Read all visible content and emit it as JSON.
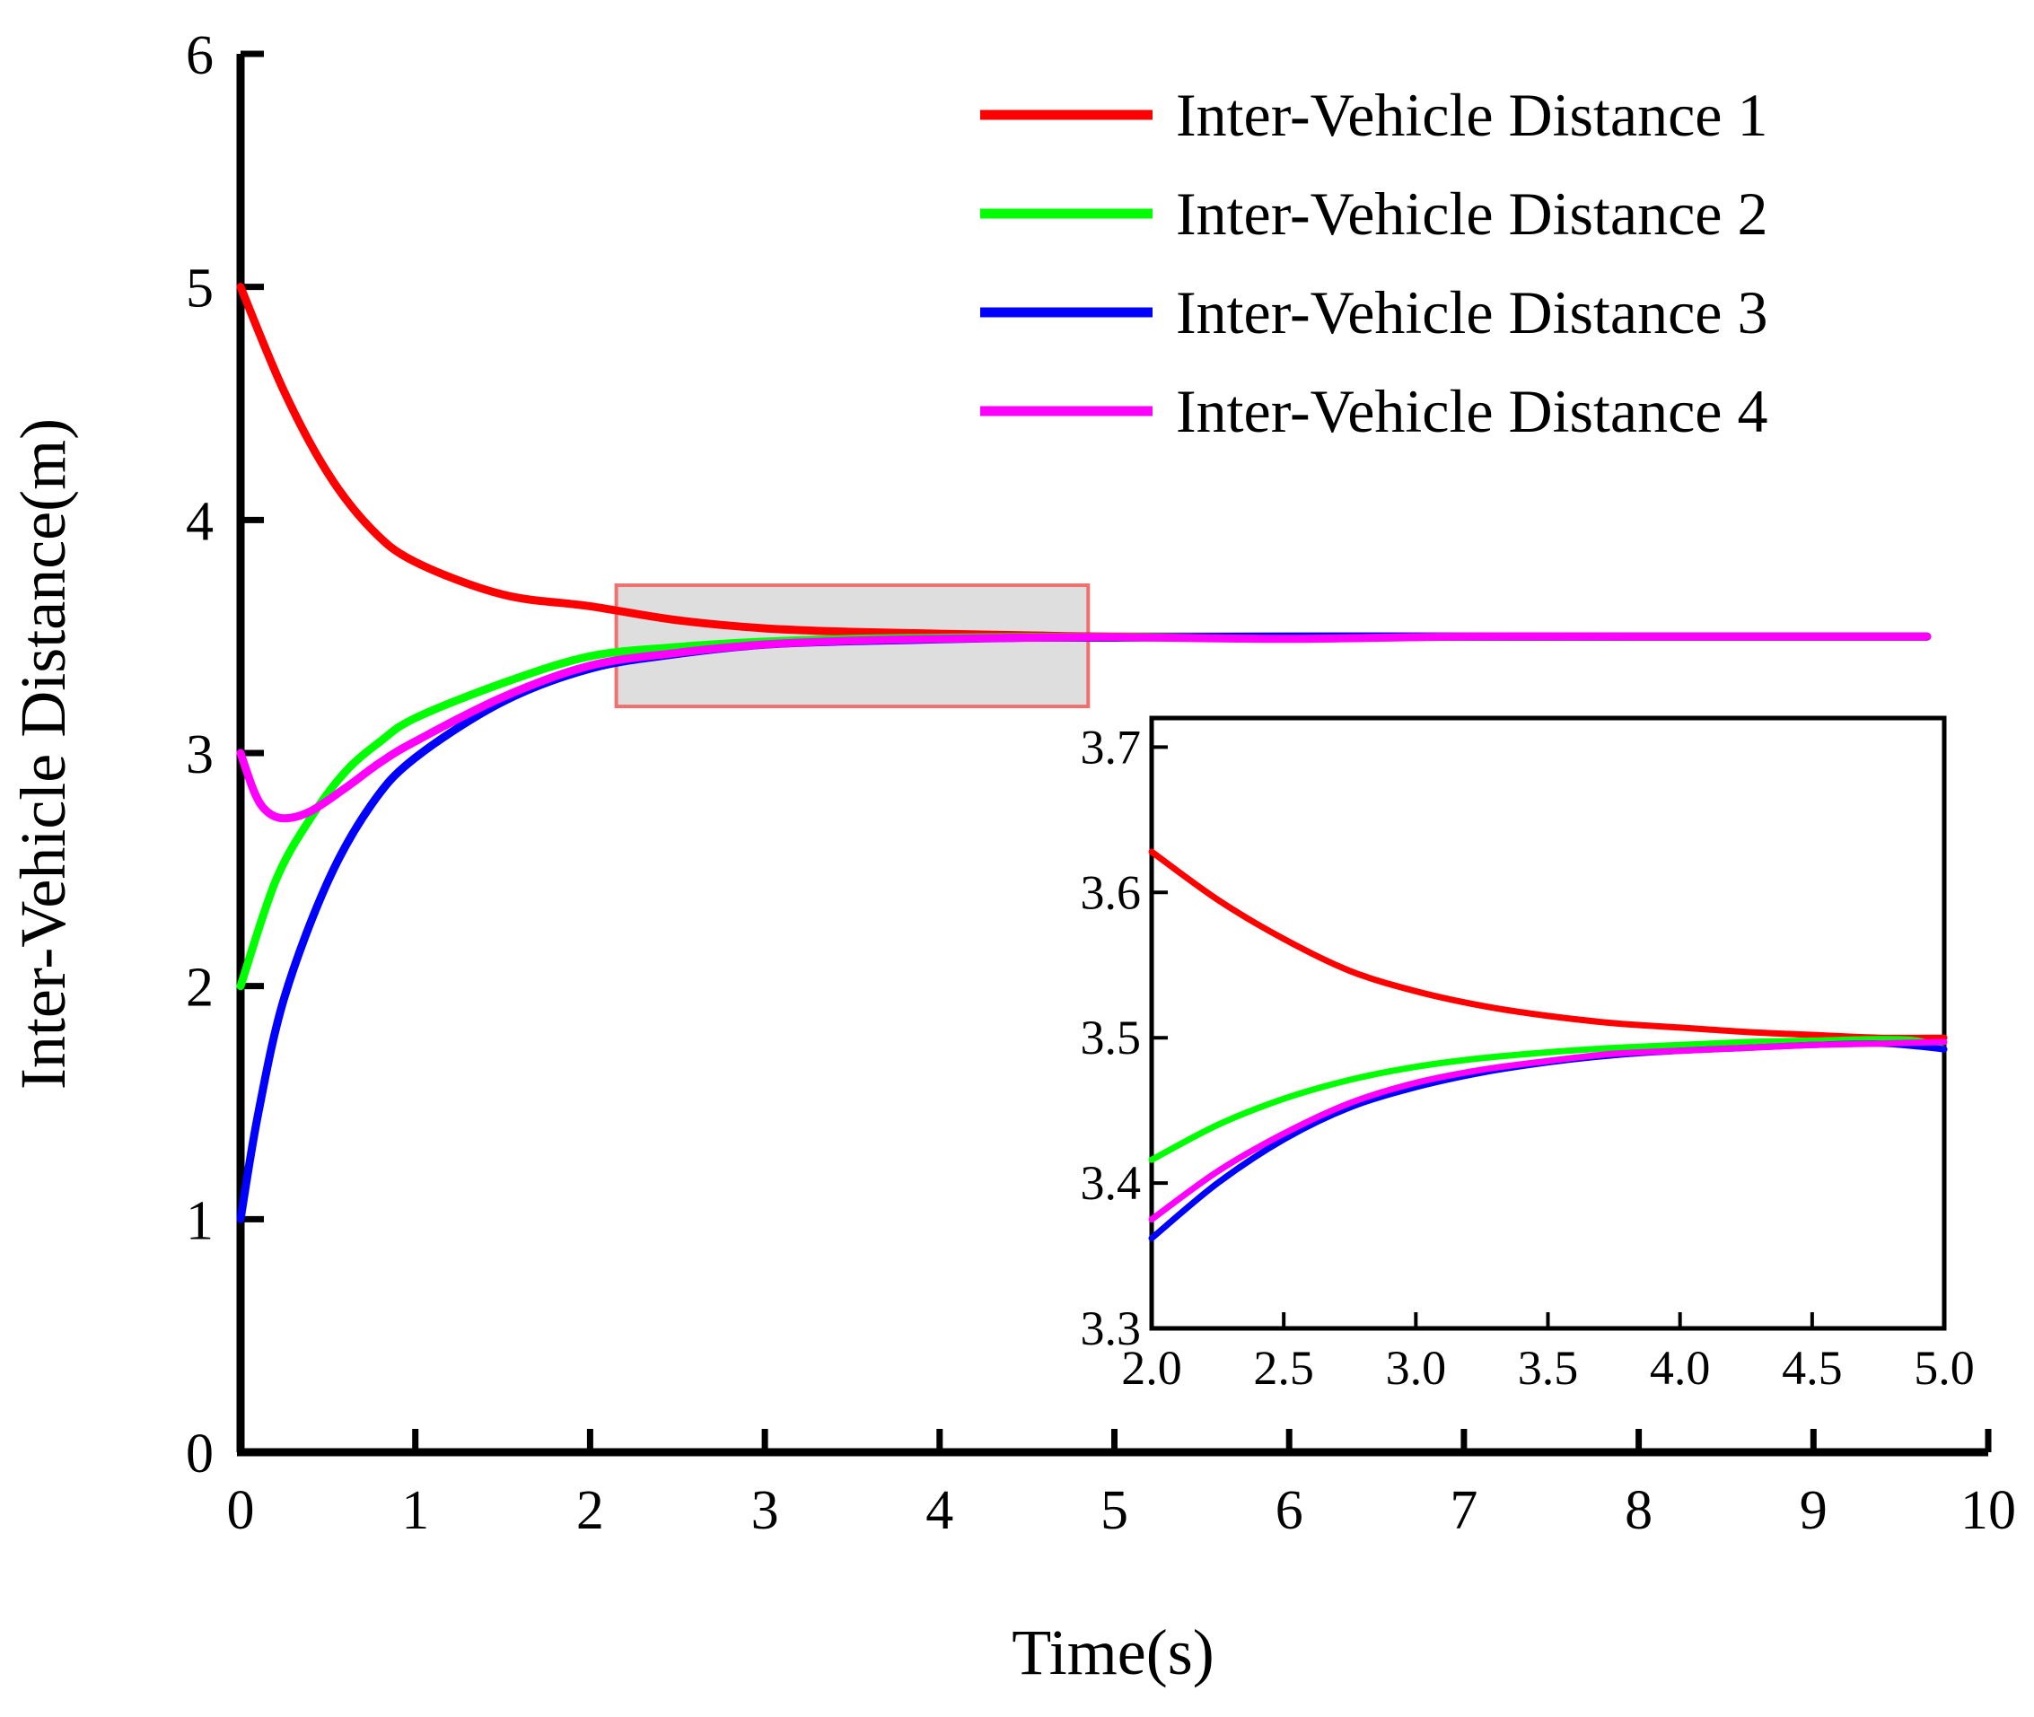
{
  "chart_data": {
    "type": "line",
    "xlabel": "Time(s)",
    "ylabel": "Inter-Vehicle Distance(m)",
    "xlim": [
      0,
      10
    ],
    "ylim": [
      0,
      6
    ],
    "xticks": [
      "0",
      "1",
      "2",
      "3",
      "4",
      "5",
      "6",
      "7",
      "8",
      "9",
      "10"
    ],
    "yticks": [
      "0",
      "1",
      "2",
      "3",
      "4",
      "5",
      "6"
    ],
    "grid": false,
    "legend_position": "top-right",
    "zoom_region": {
      "x": [
        2.15,
        4.85
      ],
      "y": [
        3.2,
        3.72
      ]
    },
    "series": [
      {
        "name": "Inter-Vehicle Distance 1",
        "color": "#ff0000",
        "x": [
          0.0,
          0.25,
          0.5,
          0.75,
          1.0,
          1.5,
          2.0,
          2.5,
          3.0,
          3.5,
          4.0,
          4.5,
          5.0,
          6.0,
          7.0,
          8.0,
          9.0,
          9.65
        ],
        "y": [
          5.0,
          4.55,
          4.2,
          3.96,
          3.82,
          3.68,
          3.63,
          3.57,
          3.535,
          3.52,
          3.512,
          3.505,
          3.5,
          3.5,
          3.5,
          3.5,
          3.5,
          3.5
        ]
      },
      {
        "name": "Inter-Vehicle Distance 2",
        "color": "#00ff00",
        "x": [
          0.0,
          0.2,
          0.4,
          0.6,
          0.8,
          1.0,
          1.5,
          2.0,
          2.5,
          3.0,
          3.5,
          4.0,
          4.5,
          5.0,
          6.0,
          7.0,
          8.0,
          9.0,
          9.65
        ],
        "y": [
          2.0,
          2.45,
          2.72,
          2.92,
          3.05,
          3.15,
          3.3,
          3.415,
          3.455,
          3.478,
          3.49,
          3.495,
          3.498,
          3.498,
          3.5,
          3.5,
          3.5,
          3.5,
          3.5
        ]
      },
      {
        "name": "Inter-Vehicle Distance 3",
        "color": "#0000ff",
        "x": [
          0.0,
          0.1,
          0.25,
          0.5,
          0.75,
          1.0,
          1.5,
          2.0,
          2.5,
          3.0,
          3.5,
          4.0,
          4.5,
          5.0,
          6.0,
          7.0,
          8.0,
          9.0,
          9.65
        ],
        "y": [
          1.0,
          1.45,
          1.95,
          2.45,
          2.78,
          2.98,
          3.22,
          3.362,
          3.425,
          3.465,
          3.48,
          3.488,
          3.495,
          3.495,
          3.5,
          3.5,
          3.5,
          3.5,
          3.5
        ]
      },
      {
        "name": "Inter-Vehicle Distance 4",
        "color": "#ff00ff",
        "x": [
          0.0,
          0.08,
          0.15,
          0.25,
          0.4,
          0.6,
          0.8,
          1.0,
          1.5,
          2.0,
          2.5,
          3.0,
          3.5,
          4.0,
          4.5,
          5.0,
          6.0,
          7.0,
          8.0,
          9.0,
          9.65
        ],
        "y": [
          3.0,
          2.83,
          2.75,
          2.72,
          2.75,
          2.85,
          2.96,
          3.05,
          3.24,
          3.375,
          3.43,
          3.466,
          3.482,
          3.49,
          3.495,
          3.497,
          3.49,
          3.5,
          3.5,
          3.5,
          3.5
        ]
      }
    ],
    "inset": {
      "xlim": [
        2.0,
        5.0
      ],
      "ylim": [
        3.3,
        3.72
      ],
      "xticks": [
        "2.0",
        "2.5",
        "3.0",
        "3.5",
        "4.0",
        "4.5",
        "5.0"
      ],
      "yticks": [
        "3.3",
        "3.4",
        "3.5",
        "3.6",
        "3.7"
      ],
      "series": [
        {
          "name": "Inter-Vehicle Distance 1",
          "color": "#ff0000",
          "x": [
            2.0,
            2.25,
            2.5,
            2.75,
            3.0,
            3.25,
            3.5,
            3.75,
            4.0,
            4.25,
            4.5,
            4.75,
            5.0
          ],
          "y": [
            3.628,
            3.595,
            3.568,
            3.546,
            3.532,
            3.522,
            3.515,
            3.51,
            3.507,
            3.504,
            3.502,
            3.5,
            3.5
          ]
        },
        {
          "name": "Inter-Vehicle Distance 2",
          "color": "#00ff00",
          "x": [
            2.0,
            2.25,
            2.5,
            2.75,
            3.0,
            3.25,
            3.5,
            3.75,
            4.0,
            4.25,
            4.5,
            4.75,
            4.9,
            5.0
          ],
          "y": [
            3.416,
            3.44,
            3.458,
            3.471,
            3.48,
            3.486,
            3.49,
            3.493,
            3.495,
            3.497,
            3.498,
            3.499,
            3.498,
            3.492
          ]
        },
        {
          "name": "Inter-Vehicle Distance 3",
          "color": "#0000ff",
          "x": [
            2.0,
            2.25,
            2.5,
            2.75,
            3.0,
            3.25,
            3.5,
            3.75,
            4.0,
            4.25,
            4.5,
            4.75,
            4.9,
            5.0
          ],
          "y": [
            3.362,
            3.4,
            3.43,
            3.452,
            3.466,
            3.476,
            3.483,
            3.488,
            3.491,
            3.493,
            3.495,
            3.496,
            3.494,
            3.492
          ]
        },
        {
          "name": "Inter-Vehicle Distance 4",
          "color": "#ff00ff",
          "x": [
            2.0,
            2.25,
            2.5,
            2.75,
            3.0,
            3.25,
            3.5,
            3.75,
            4.0,
            4.25,
            4.5,
            4.75,
            5.0
          ],
          "y": [
            3.375,
            3.408,
            3.434,
            3.455,
            3.469,
            3.478,
            3.484,
            3.489,
            3.491,
            3.493,
            3.495,
            3.496,
            3.497
          ]
        }
      ]
    }
  }
}
